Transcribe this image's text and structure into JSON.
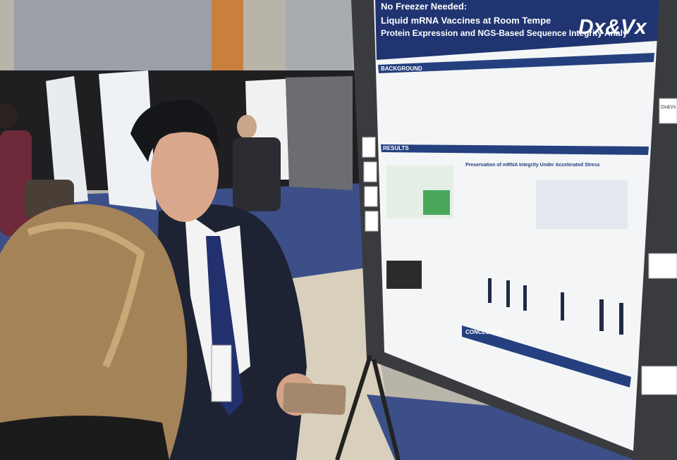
{
  "poster": {
    "title_lines": [
      "No Freezer Needed:",
      "Liquid mRNA Vaccines at Room Tempe",
      "Protein Expression and NGS-Based Sequence Integrity Analy"
    ],
    "logo": "Dx&Vx",
    "sections": [
      "BACKGROUND",
      "RESULTS",
      "CONCLUSION"
    ],
    "results_heading": "Preservation of mRNA Integrity Under Accelerated Stress"
  },
  "side_cards": [
    "Dx&Vx"
  ]
}
